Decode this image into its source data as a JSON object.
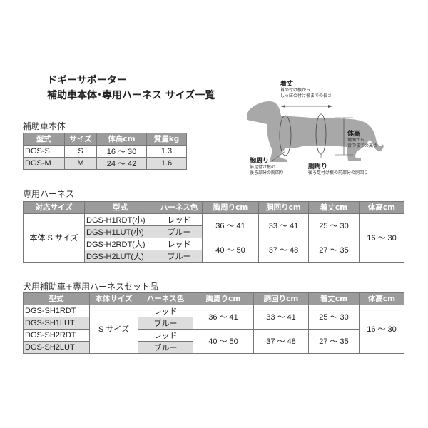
{
  "title": {
    "line1": "ドギーサポーター",
    "line2": "補助車本体･専用ハーネス サイズ一覧"
  },
  "diagram": {
    "length": {
      "label": "着丈",
      "desc1": "首の付け根から",
      "desc2": "しっぽの付け根までの長さ"
    },
    "height": {
      "label": "体高",
      "desc1": "地面から",
      "desc2": "背中までの高さ"
    },
    "chest": {
      "label": "胸周り",
      "desc1": "前足付け根の",
      "desc2": "後ろ部分の胸回り"
    },
    "waist": {
      "label": "胴周り",
      "desc1": "後ろ足付け根の前部分の胴回り"
    }
  },
  "body_table": {
    "title": "補助車本体",
    "headers": [
      "型式",
      "サイズ",
      "体高cm",
      "質量kg"
    ],
    "rows": [
      [
        "DGS-S",
        "S",
        "16 ～ 30",
        "1.3"
      ],
      [
        "DGS-M",
        "M",
        "24 ～ 42",
        "1.6"
      ]
    ]
  },
  "harness_table": {
    "title": "専用ハーネス",
    "headers": [
      "対応サイズ",
      "型式",
      "ハーネス色",
      "胸周りcm",
      "胴回りcm",
      "着丈cm",
      "体高cm"
    ],
    "size": "本体 S サイズ",
    "height": "16 ～ 30",
    "models": [
      "DGS-H1RDT(小)",
      "DGS-H1LUT(小)",
      "DGS-H2RDT(大)",
      "DGS-H2LUT(大)"
    ],
    "colors": [
      "レッド",
      "ブルー",
      "レッド",
      "ブルー"
    ],
    "groups": [
      {
        "chest": "36 ～ 41",
        "waist": "33 ～ 41",
        "length": "25 ～ 30"
      },
      {
        "chest": "40 ～ 50",
        "waist": "37 ～ 48",
        "length": "27 ～ 35"
      }
    ]
  },
  "set_table": {
    "title": "犬用補助車+専用ハーネスセット品",
    "headers": [
      "型式",
      "本体サイズ",
      "ハーネス色",
      "胸周りcm",
      "胴回りcm",
      "着丈cm",
      "体高cm"
    ],
    "size": "S サイズ",
    "height": "16 ～ 30",
    "models": [
      "DGS-SH1RDT",
      "DGS-SH1LUT",
      "DGS-SH2RDT",
      "DGS-SH2LUT"
    ],
    "colors": [
      "レッド",
      "ブルー",
      "レッド",
      "ブルー"
    ],
    "groups": [
      {
        "chest": "36 ～ 41",
        "waist": "33 ～ 41",
        "length": "25 ～ 30"
      },
      {
        "chest": "40 ～ 50",
        "waist": "37 ～ 48",
        "length": "27 ～ 35"
      }
    ]
  },
  "colors": {
    "header": "#9b9b9b",
    "shade": "#dddddd",
    "dog": "#a8a8a8"
  }
}
